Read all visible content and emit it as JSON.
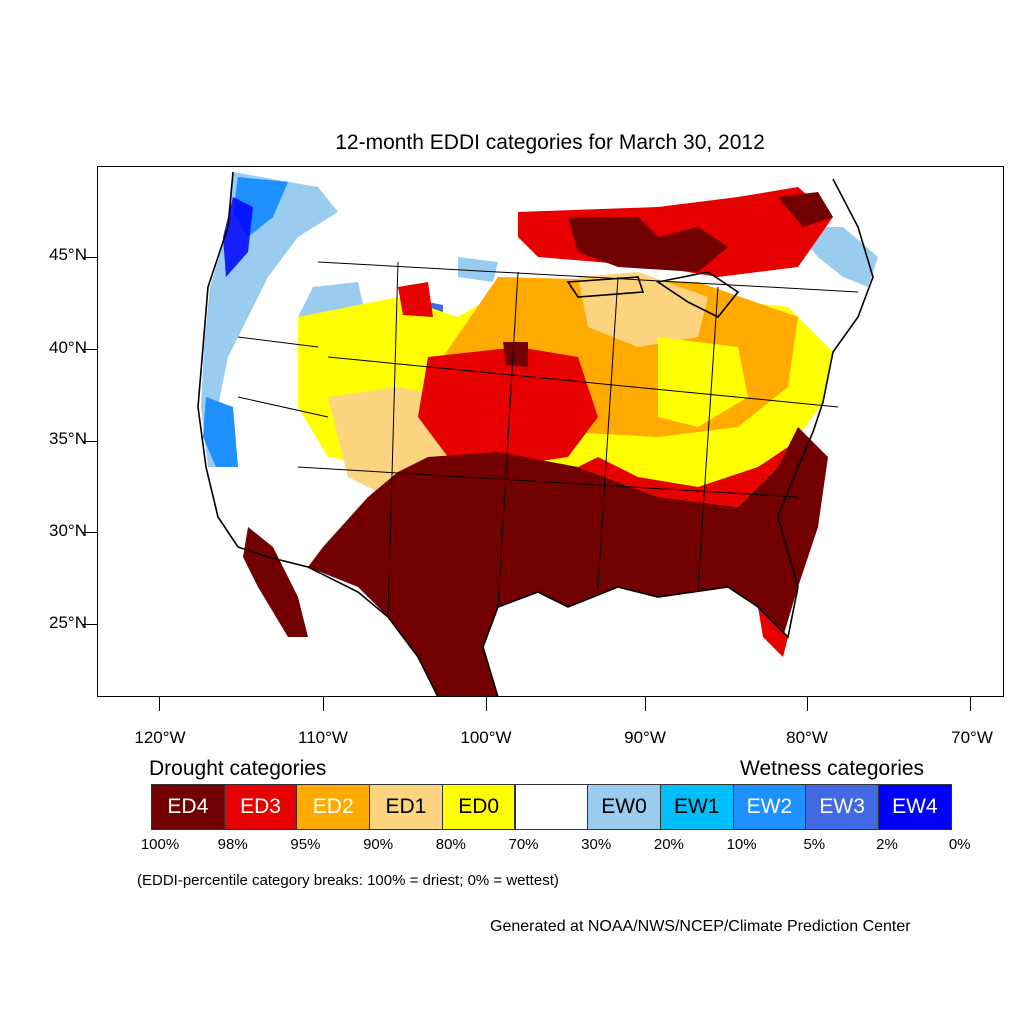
{
  "title": "12-month EDDI categories for March 30, 2012",
  "axes": {
    "lat_labels": [
      "45°N",
      "40°N",
      "35°N",
      "30°N",
      "25°N"
    ],
    "lon_labels": [
      "120°W",
      "110°W",
      "100°W",
      "90°W",
      "80°W",
      "70°W"
    ]
  },
  "legend": {
    "drought_heading": "Drought categories",
    "wetness_heading": "Wetness categories",
    "categories": [
      {
        "label": "ED4",
        "color": "#730000"
      },
      {
        "label": "ED3",
        "color": "#e60000"
      },
      {
        "label": "ED2",
        "color": "#ffaa00"
      },
      {
        "label": "ED1",
        "color": "#fcd37f"
      },
      {
        "label": "ED0",
        "color": "#ffff00"
      },
      {
        "label": "",
        "color": "#ffffff"
      },
      {
        "label": "EW0",
        "color": "#99ccee"
      },
      {
        "label": "EW1",
        "color": "#00bfff"
      },
      {
        "label": "EW2",
        "color": "#1e90ff"
      },
      {
        "label": "EW3",
        "color": "#4169e1"
      },
      {
        "label": "EW4",
        "color": "#0000ff"
      }
    ],
    "breaks": [
      "100%",
      "98%",
      "95%",
      "90%",
      "80%",
      "70%",
      "30%",
      "20%",
      "10%",
      "5%",
      "2%",
      "0%"
    ]
  },
  "note": "(EDDI-percentile category breaks: 100% = driest; 0% = wettest)",
  "credit": "Generated at NOAA/NWS/NCEP/Climate Prediction Center"
}
